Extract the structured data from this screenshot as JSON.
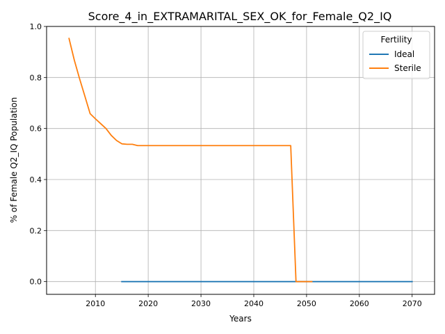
{
  "chart_data": {
    "type": "line",
    "title": "Score_4_in_EXTRAMARITAL_SEX_OK_for_Female_Q2_IQ",
    "xlabel": "Years",
    "ylabel": "% of Female Q2_IQ Population",
    "xlim": [
      2000.75,
      2074.25
    ],
    "ylim": [
      -0.05,
      1.0
    ],
    "x_ticks": [
      2010,
      2020,
      2030,
      2040,
      2050,
      2060,
      2070
    ],
    "y_ticks": [
      0.0,
      0.2,
      0.4,
      0.6,
      0.8,
      1.0
    ],
    "x_tick_labels": [
      "2010",
      "2020",
      "2030",
      "2040",
      "2050",
      "2060",
      "2070"
    ],
    "y_tick_labels": [
      "0.0",
      "0.2",
      "0.4",
      "0.6",
      "0.8",
      "1.0"
    ],
    "grid": true,
    "legend": {
      "title": "Fertility",
      "placement": "top-right"
    },
    "series": [
      {
        "name": "Ideal",
        "color": "#1f77b4",
        "x": [
          2015,
          2070
        ],
        "y": [
          0.0,
          0.0
        ]
      },
      {
        "name": "Sterile",
        "color": "#ff7f0e",
        "x": [
          2005,
          2006,
          2007,
          2008,
          2009,
          2010,
          2011,
          2012,
          2013,
          2014,
          2015,
          2016,
          2017,
          2018,
          2019,
          2020,
          2030,
          2040,
          2047,
          2048,
          2049,
          2050,
          2051
        ],
        "y": [
          0.953,
          0.868,
          0.795,
          0.727,
          0.658,
          0.638,
          0.619,
          0.6,
          0.573,
          0.553,
          0.54,
          0.538,
          0.538,
          0.533,
          0.533,
          0.533,
          0.533,
          0.533,
          0.533,
          0.0,
          0.0,
          0.0,
          0.0
        ]
      }
    ]
  }
}
